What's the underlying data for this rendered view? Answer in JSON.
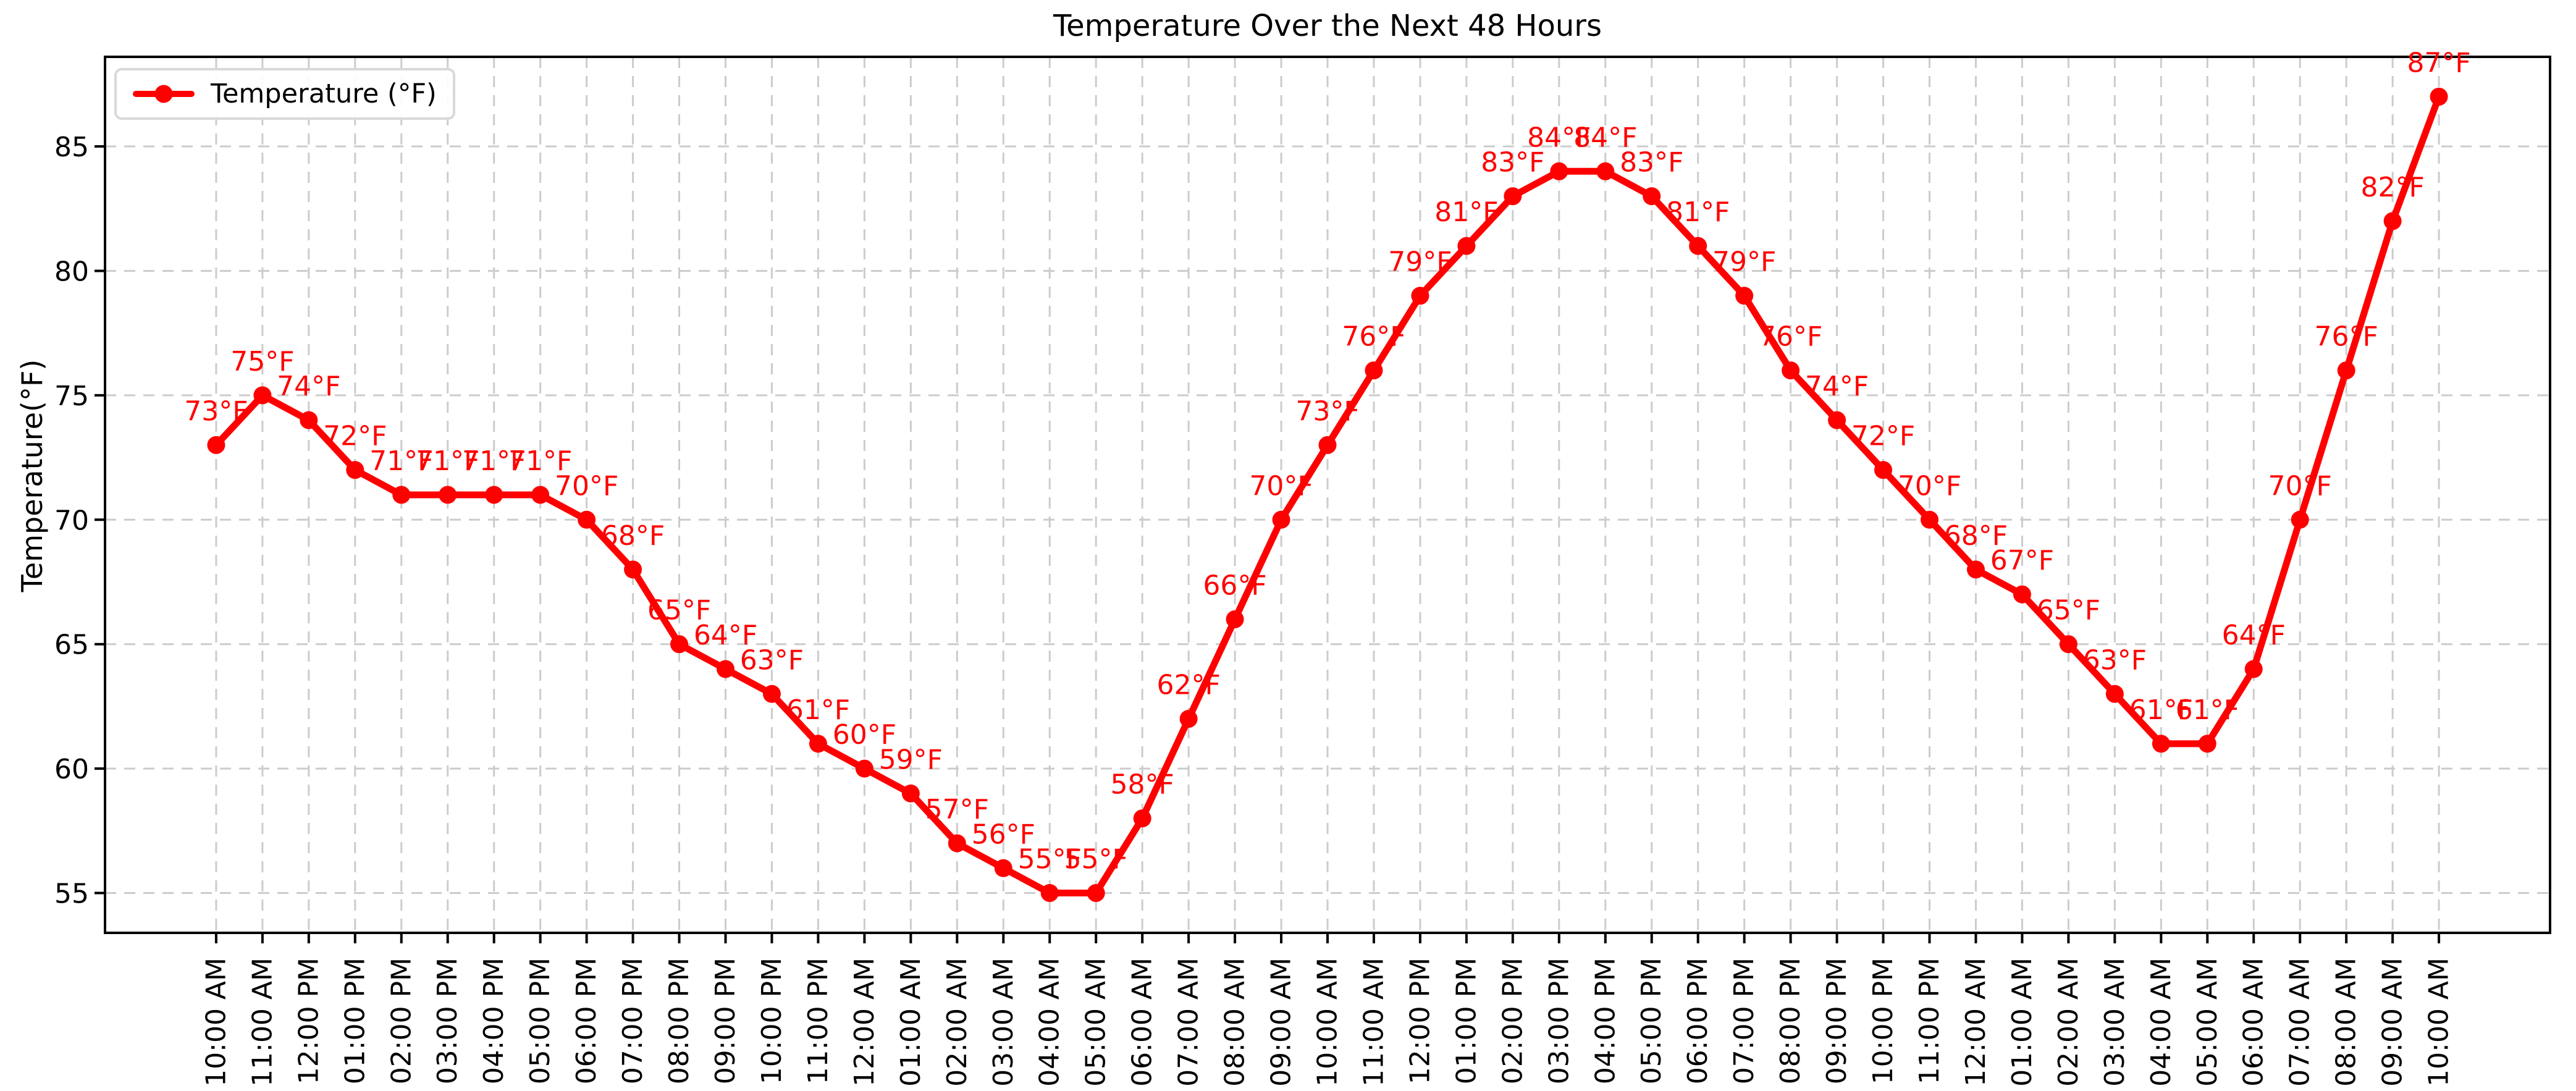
{
  "title": "Temperature Over the Next 48 Hours",
  "chart_data": {
    "type": "line",
    "title": "Temperature Over the Next 48 Hours",
    "xlabel": "",
    "ylabel": "Temperature(°F)",
    "legend": {
      "label": "Temperature (°F)",
      "position": "upper left"
    },
    "grid": true,
    "line_color": "#ff0000",
    "marker": "o",
    "grid_color": "#cccccc",
    "axis_color": "#000000",
    "text_color": "#000000",
    "ylim": [
      53.4,
      88.6
    ],
    "x_margin": 2.4,
    "yticks": [
      55,
      60,
      65,
      70,
      75,
      80,
      85
    ],
    "x": [
      "10:00 AM",
      "11:00 AM",
      "12:00 PM",
      "01:00 PM",
      "02:00 PM",
      "03:00 PM",
      "04:00 PM",
      "05:00 PM",
      "06:00 PM",
      "07:00 PM",
      "08:00 PM",
      "09:00 PM",
      "10:00 PM",
      "11:00 PM",
      "12:00 AM",
      "01:00 AM",
      "02:00 AM",
      "03:00 AM",
      "04:00 AM",
      "05:00 AM",
      "06:00 AM",
      "07:00 AM",
      "08:00 AM",
      "09:00 AM",
      "10:00 AM",
      "11:00 AM",
      "12:00 PM",
      "01:00 PM",
      "02:00 PM",
      "03:00 PM",
      "04:00 PM",
      "05:00 PM",
      "06:00 PM",
      "07:00 PM",
      "08:00 PM",
      "09:00 PM",
      "10:00 PM",
      "11:00 PM",
      "12:00 AM",
      "01:00 AM",
      "02:00 AM",
      "03:00 AM",
      "04:00 AM",
      "05:00 AM",
      "06:00 AM",
      "07:00 AM",
      "08:00 AM",
      "09:00 AM",
      "10:00 AM"
    ],
    "series": [
      {
        "name": "Temperature (°F)",
        "values": [
          73,
          75,
          74,
          72,
          71,
          71,
          71,
          71,
          70,
          68,
          65,
          64,
          63,
          61,
          60,
          59,
          57,
          56,
          55,
          55,
          58,
          62,
          66,
          70,
          73,
          76,
          79,
          81,
          83,
          84,
          84,
          83,
          81,
          79,
          76,
          74,
          72,
          70,
          68,
          67,
          65,
          63,
          61,
          61,
          64,
          70,
          76,
          82,
          87
        ]
      }
    ],
    "point_labels": [
      "73°F",
      "75°F",
      "74°F",
      "72°F",
      "71°F",
      "71°F",
      "71°F",
      "71°F",
      "70°F",
      "68°F",
      "65°F",
      "64°F",
      "63°F",
      "61°F",
      "60°F",
      "59°F",
      "57°F",
      "56°F",
      "55°F",
      "55°F",
      "58°F",
      "62°F",
      "66°F",
      "70°F",
      "73°F",
      "76°F",
      "79°F",
      "81°F",
      "83°F",
      "84°F",
      "84°F",
      "83°F",
      "81°F",
      "79°F",
      "76°F",
      "74°F",
      "72°F",
      "70°F",
      "68°F",
      "67°F",
      "65°F",
      "63°F",
      "61°F",
      "61°F",
      "64°F",
      "70°F",
      "76°F",
      "82°F",
      "87°F"
    ]
  }
}
